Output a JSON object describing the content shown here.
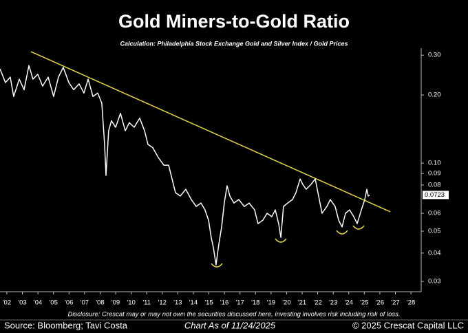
{
  "chart_data": {
    "type": "line",
    "title": "Gold Miners-to-Gold Ratio",
    "subtitle": "Calculation: Philadelphia Stock Exchange Gold and Silver Index / Gold Prices",
    "disclosure": "Disclosure: Crescat may or may not own the securities discussed here, investing involves risk including risk of loss.",
    "source": "Source: Bloomberg; Tavi Costa",
    "as_of": "Chart As of 11/24/2025",
    "copyright": "© 2025 Crescat Capital LLC",
    "ylog": true,
    "xlim": [
      2001.56,
      2028.66
    ],
    "ylim": [
      0.027,
      0.32
    ],
    "xticks": [
      {
        "value": 2002,
        "label": "'02"
      },
      {
        "value": 2003,
        "label": "'03"
      },
      {
        "value": 2004,
        "label": "'04"
      },
      {
        "value": 2005,
        "label": "'05"
      },
      {
        "value": 2006,
        "label": "'06"
      },
      {
        "value": 2007,
        "label": "'07"
      },
      {
        "value": 2008,
        "label": "'08"
      },
      {
        "value": 2009,
        "label": "'09"
      },
      {
        "value": 2010,
        "label": "'10"
      },
      {
        "value": 2011,
        "label": "'11"
      },
      {
        "value": 2012,
        "label": "'12"
      },
      {
        "value": 2013,
        "label": "'13"
      },
      {
        "value": 2014,
        "label": "'14"
      },
      {
        "value": 2015,
        "label": "'15"
      },
      {
        "value": 2016,
        "label": "'16"
      },
      {
        "value": 2017,
        "label": "'17"
      },
      {
        "value": 2018,
        "label": "'18"
      },
      {
        "value": 2019,
        "label": "'19"
      },
      {
        "value": 2020,
        "label": "'20"
      },
      {
        "value": 2021,
        "label": "'21"
      },
      {
        "value": 2022,
        "label": "'22"
      },
      {
        "value": 2023,
        "label": "'23"
      },
      {
        "value": 2024,
        "label": "'24"
      },
      {
        "value": 2025,
        "label": "'25"
      },
      {
        "value": 2026,
        "label": "'26"
      },
      {
        "value": 2027,
        "label": "'27"
      },
      {
        "value": 2028,
        "label": "'28"
      }
    ],
    "yticks": [
      {
        "value": 0.3,
        "label": "0.30"
      },
      {
        "value": 0.2,
        "label": "0.20"
      },
      {
        "value": 0.1,
        "label": "0.10"
      },
      0.09,
      0.08,
      0.06,
      0.05,
      0.04,
      0.03
    ],
    "last_value_label": 0.0723,
    "series": [
      {
        "color": "#ffffff",
        "x": [
          2001.56,
          2001.91,
          2002.22,
          2002.44,
          2002.8,
          2003.11,
          2003.42,
          2003.68,
          2003.99,
          2004.3,
          2004.66,
          2005.01,
          2005.32,
          2005.63,
          2005.99,
          2006.3,
          2006.65,
          2006.96,
          2007.23,
          2007.54,
          2007.85,
          2008.11,
          2008.29,
          2008.38,
          2008.55,
          2008.73,
          2009.0,
          2009.31,
          2009.62,
          2009.88,
          2010.19,
          2010.55,
          2010.86,
          2011.08,
          2011.39,
          2011.74,
          2012.1,
          2012.41,
          2012.63,
          2012.85,
          2013.16,
          2013.51,
          2013.87,
          2014.18,
          2014.49,
          2014.75,
          2014.98,
          2015.15,
          2015.29,
          2015.46,
          2015.64,
          2015.82,
          2015.99,
          2016.17,
          2016.35,
          2016.61,
          2016.92,
          2017.28,
          2017.59,
          2017.94,
          2018.16,
          2018.47,
          2018.74,
          2019.05,
          2019.27,
          2019.49,
          2019.63,
          2019.8,
          2020.07,
          2020.38,
          2020.6,
          2020.87,
          2021.04,
          2021.26,
          2021.57,
          2021.84,
          2022.06,
          2022.28,
          2022.59,
          2022.81,
          2023.12,
          2023.35,
          2023.57,
          2023.79,
          2024.05,
          2024.32,
          2024.54,
          2024.81,
          2025.03,
          2025.16,
          2025.25,
          2025.34
        ],
        "values": [
          0.261,
          0.227,
          0.24,
          0.197,
          0.235,
          0.211,
          0.27,
          0.235,
          0.247,
          0.219,
          0.24,
          0.197,
          0.24,
          0.265,
          0.227,
          0.211,
          0.224,
          0.204,
          0.235,
          0.197,
          0.204,
          0.184,
          0.121,
          0.0882,
          0.139,
          0.154,
          0.144,
          0.166,
          0.139,
          0.151,
          0.144,
          0.158,
          0.139,
          0.121,
          0.117,
          0.106,
          0.0979,
          0.0979,
          0.0851,
          0.074,
          0.0715,
          0.0766,
          0.069,
          0.0643,
          0.0666,
          0.0621,
          0.0559,
          0.0469,
          0.0423,
          0.0355,
          0.0438,
          0.0522,
          0.0666,
          0.0794,
          0.0715,
          0.0666,
          0.069,
          0.0643,
          0.0666,
          0.0621,
          0.054,
          0.0559,
          0.06,
          0.058,
          0.0621,
          0.054,
          0.0469,
          0.0643,
          0.0666,
          0.069,
          0.074,
          0.0851,
          0.0805,
          0.0766,
          0.0805,
          0.0851,
          0.0715,
          0.06,
          0.0643,
          0.069,
          0.0643,
          0.0559,
          0.0522,
          0.06,
          0.0621,
          0.058,
          0.054,
          0.0621,
          0.069,
          0.0766,
          0.0715,
          0.0723
        ]
      }
    ],
    "trendline": {
      "color": "#e6d84a",
      "x": [
        2003.55,
        2026.67
      ],
      "values": [
        0.311,
        0.0609
      ]
    }
  }
}
